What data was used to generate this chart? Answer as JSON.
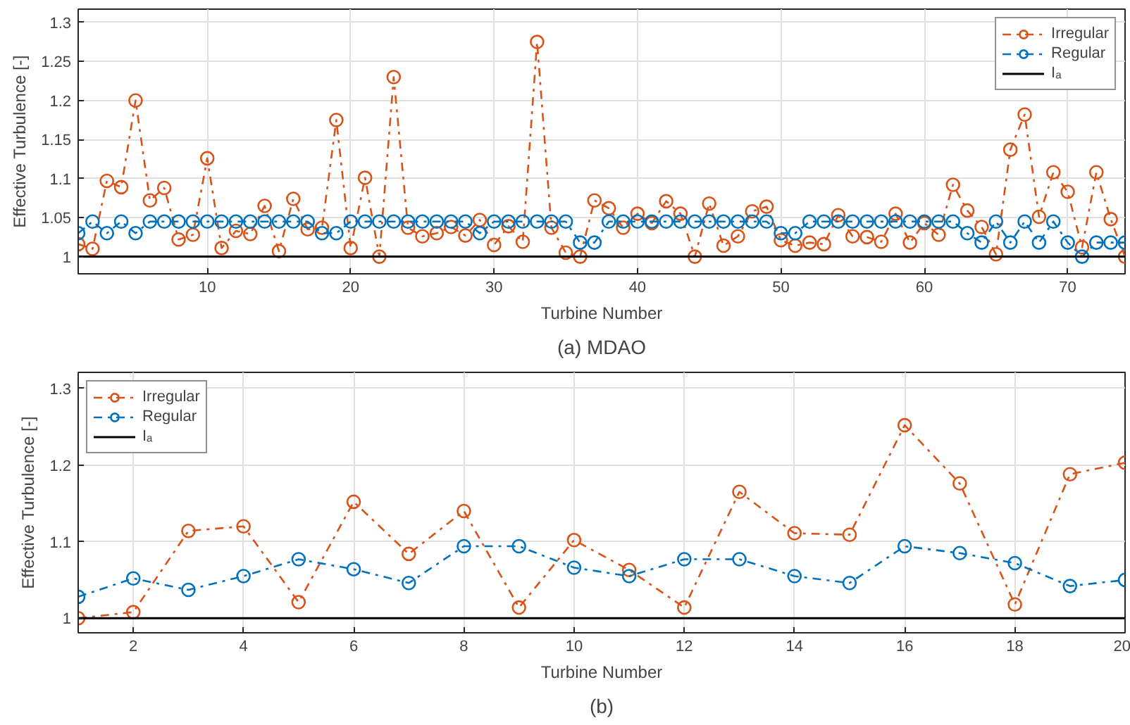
{
  "chart_data": [
    {
      "type": "line",
      "xlabel": "Turbine Number",
      "ylabel": "Effective Turbulence [-]",
      "annotations": [
        "(a) MDAO"
      ],
      "x": [
        1,
        2,
        3,
        4,
        5,
        6,
        7,
        8,
        9,
        10,
        11,
        12,
        13,
        14,
        15,
        16,
        17,
        18,
        19,
        20,
        21,
        22,
        23,
        24,
        25,
        26,
        27,
        28,
        29,
        30,
        31,
        32,
        33,
        34,
        35,
        36,
        37,
        38,
        39,
        40,
        41,
        42,
        43,
        44,
        45,
        46,
        47,
        48,
        49,
        50,
        51,
        52,
        53,
        54,
        55,
        56,
        57,
        58,
        59,
        60,
        61,
        62,
        63,
        64,
        65,
        66,
        67,
        68,
        69,
        70,
        71,
        72,
        73,
        74
      ],
      "xlim": [
        1,
        74
      ],
      "ylim": [
        0.978,
        1.317
      ],
      "xticks": [
        10,
        20,
        30,
        40,
        50,
        60,
        70
      ],
      "yticks": [
        1,
        1.05,
        1.1,
        1.15,
        1.2,
        1.25,
        1.3
      ],
      "grid": true,
      "legend": "top right",
      "marker": "circle",
      "line_style": "dashdot",
      "series": [
        {
          "name": "Irregular",
          "color": "#d95319",
          "values": [
            1.016,
            1.01,
            1.097,
            1.089,
            1.2,
            1.072,
            1.088,
            1.022,
            1.028,
            1.126,
            1.011,
            1.033,
            1.029,
            1.065,
            1.007,
            1.074,
            1.035,
            1.037,
            1.175,
            1.011,
            1.101,
            1.0,
            1.23,
            1.037,
            1.026,
            1.03,
            1.038,
            1.027,
            1.047,
            1.015,
            1.039,
            1.019,
            1.275,
            1.037,
            1.005,
            1.0,
            1.072,
            1.062,
            1.037,
            1.055,
            1.043,
            1.071,
            1.055,
            1.0,
            1.068,
            1.014,
            1.026,
            1.058,
            1.064,
            1.021,
            1.014,
            1.018,
            1.016,
            1.053,
            1.026,
            1.025,
            1.019,
            1.055,
            1.018,
            1.043,
            1.028,
            1.092,
            1.059,
            1.038,
            1.003,
            1.137,
            1.182,
            1.051,
            1.108,
            1.083,
            1.012,
            1.108,
            1.048,
            1.0
          ]
        },
        {
          "name": "Regular",
          "color": "#0072bd",
          "values": [
            1.03,
            1.045,
            1.03,
            1.045,
            1.03,
            1.045,
            1.045,
            1.045,
            1.045,
            1.045,
            1.045,
            1.045,
            1.045,
            1.045,
            1.045,
            1.045,
            1.045,
            1.03,
            1.03,
            1.045,
            1.045,
            1.045,
            1.045,
            1.045,
            1.045,
            1.045,
            1.045,
            1.045,
            1.03,
            1.045,
            1.045,
            1.045,
            1.045,
            1.045,
            1.045,
            1.018,
            1.018,
            1.045,
            1.045,
            1.045,
            1.045,
            1.045,
            1.045,
            1.045,
            1.045,
            1.045,
            1.045,
            1.045,
            1.045,
            1.03,
            1.03,
            1.045,
            1.045,
            1.045,
            1.045,
            1.045,
            1.045,
            1.045,
            1.045,
            1.045,
            1.045,
            1.045,
            1.03,
            1.018,
            1.045,
            1.018,
            1.045,
            1.018,
            1.045,
            1.018,
            1.0,
            1.018,
            1.018,
            1.018
          ]
        }
      ],
      "ref_lines": [
        {
          "axis": "y",
          "value": 1,
          "label": "Iₐ",
          "color": "#000000",
          "line_style": "solid"
        }
      ]
    },
    {
      "type": "line",
      "xlabel": "Turbine Number",
      "ylabel": "Effective Turbulence [-]",
      "annotations": [
        "(b)"
      ],
      "x": [
        1,
        2,
        3,
        4,
        5,
        6,
        7,
        8,
        9,
        10,
        11,
        12,
        13,
        14,
        15,
        16,
        17,
        18,
        19,
        20
      ],
      "xlim": [
        1,
        20
      ],
      "ylim": [
        0.981,
        1.321
      ],
      "xticks": [
        2,
        4,
        6,
        8,
        10,
        12,
        14,
        16,
        18,
        20
      ],
      "yticks": [
        1,
        1.1,
        1.2,
        1.3
      ],
      "grid": true,
      "legend": "top left",
      "marker": "circle",
      "line_style": "dashdot",
      "series": [
        {
          "name": "Irregular",
          "color": "#d95319",
          "values": [
            1.0,
            1.008,
            1.114,
            1.12,
            1.021,
            1.152,
            1.084,
            1.14,
            1.014,
            1.102,
            1.063,
            1.014,
            1.165,
            1.111,
            1.109,
            1.252,
            1.176,
            1.018,
            1.188,
            1.203
          ]
        },
        {
          "name": "Regular",
          "color": "#0072bd",
          "values": [
            1.028,
            1.052,
            1.037,
            1.055,
            1.077,
            1.064,
            1.046,
            1.094,
            1.094,
            1.066,
            1.055,
            1.077,
            1.077,
            1.055,
            1.046,
            1.094,
            1.085,
            1.072,
            1.042,
            1.05
          ]
        }
      ],
      "ref_lines": [
        {
          "axis": "y",
          "value": 1,
          "label": "Iₐ",
          "color": "#000000",
          "line_style": "solid"
        }
      ]
    }
  ]
}
